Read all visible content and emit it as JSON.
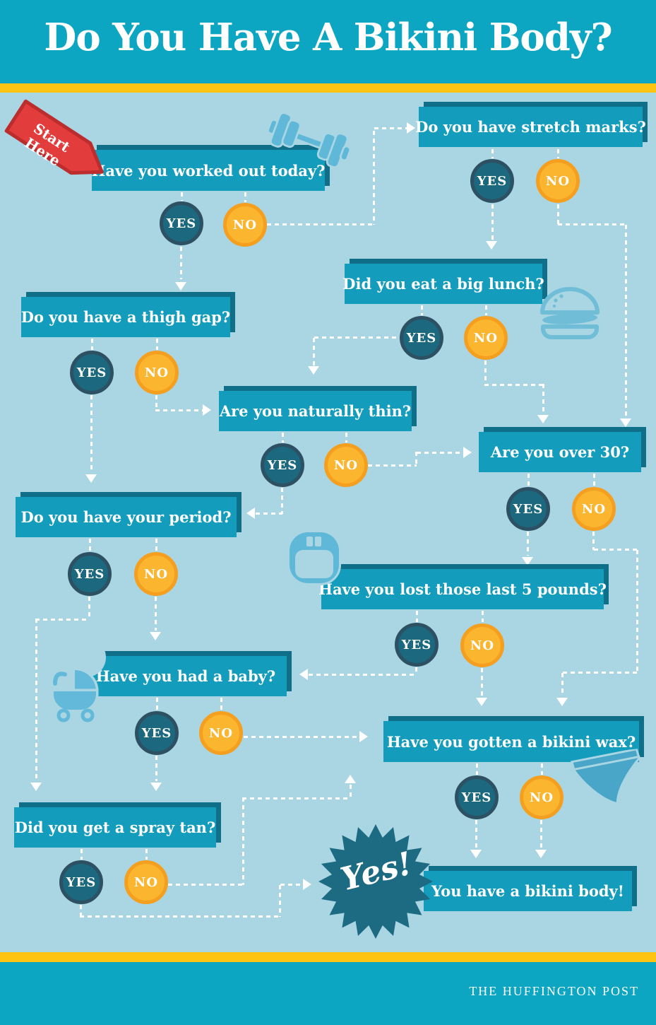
{
  "title": "Do You Have A Bikini Body?",
  "start_badge": {
    "label": "Start Here"
  },
  "answers": {
    "yes": "YES",
    "no": "NO"
  },
  "questions": {
    "worked_out": "Have you worked out today?",
    "stretch_marks": "Do you have stretch marks?",
    "big_lunch": "Did you eat a big lunch?",
    "thigh_gap": "Do you have a thigh gap?",
    "naturally_thin": "Are you naturally thin?",
    "over_30": "Are you over 30?",
    "period": "Do you have your period?",
    "lost_5_pounds": "Have you lost those last 5 pounds?",
    "baby": "Have you had a baby?",
    "bikini_wax": "Have you gotten a bikini wax?",
    "spray_tan": "Did you get a spray tan?"
  },
  "result": {
    "burst": "Yes!",
    "label": "You have a bikini body!"
  },
  "footer": {
    "brand": "THE HUFFINGTON POST"
  },
  "icons": [
    "dumbbell-icon",
    "burger-icon",
    "scale-icon",
    "baby-carriage-icon",
    "bikini-icon",
    "starburst-icon",
    "start-ribbon-icon"
  ],
  "colors": {
    "band_teal": "#0ca6c3",
    "stripe_yellow": "#fdc413",
    "background": "#aad6e3",
    "box_teal": "#149cbc",
    "box_shadow": "#0f6f88",
    "yes_fill": "#1b687f",
    "yes_border": "#2d5163",
    "no_fill": "#fcb52e",
    "no_border": "#f49f1f",
    "ribbon_red": "#e23d3c",
    "ribbon_border": "#bc2e2e",
    "icon_blue": "#5fb8d8",
    "bikini_blue": "#4aa6c8",
    "burst_teal": "#1d6a83",
    "connector_white": "#ffffff"
  }
}
